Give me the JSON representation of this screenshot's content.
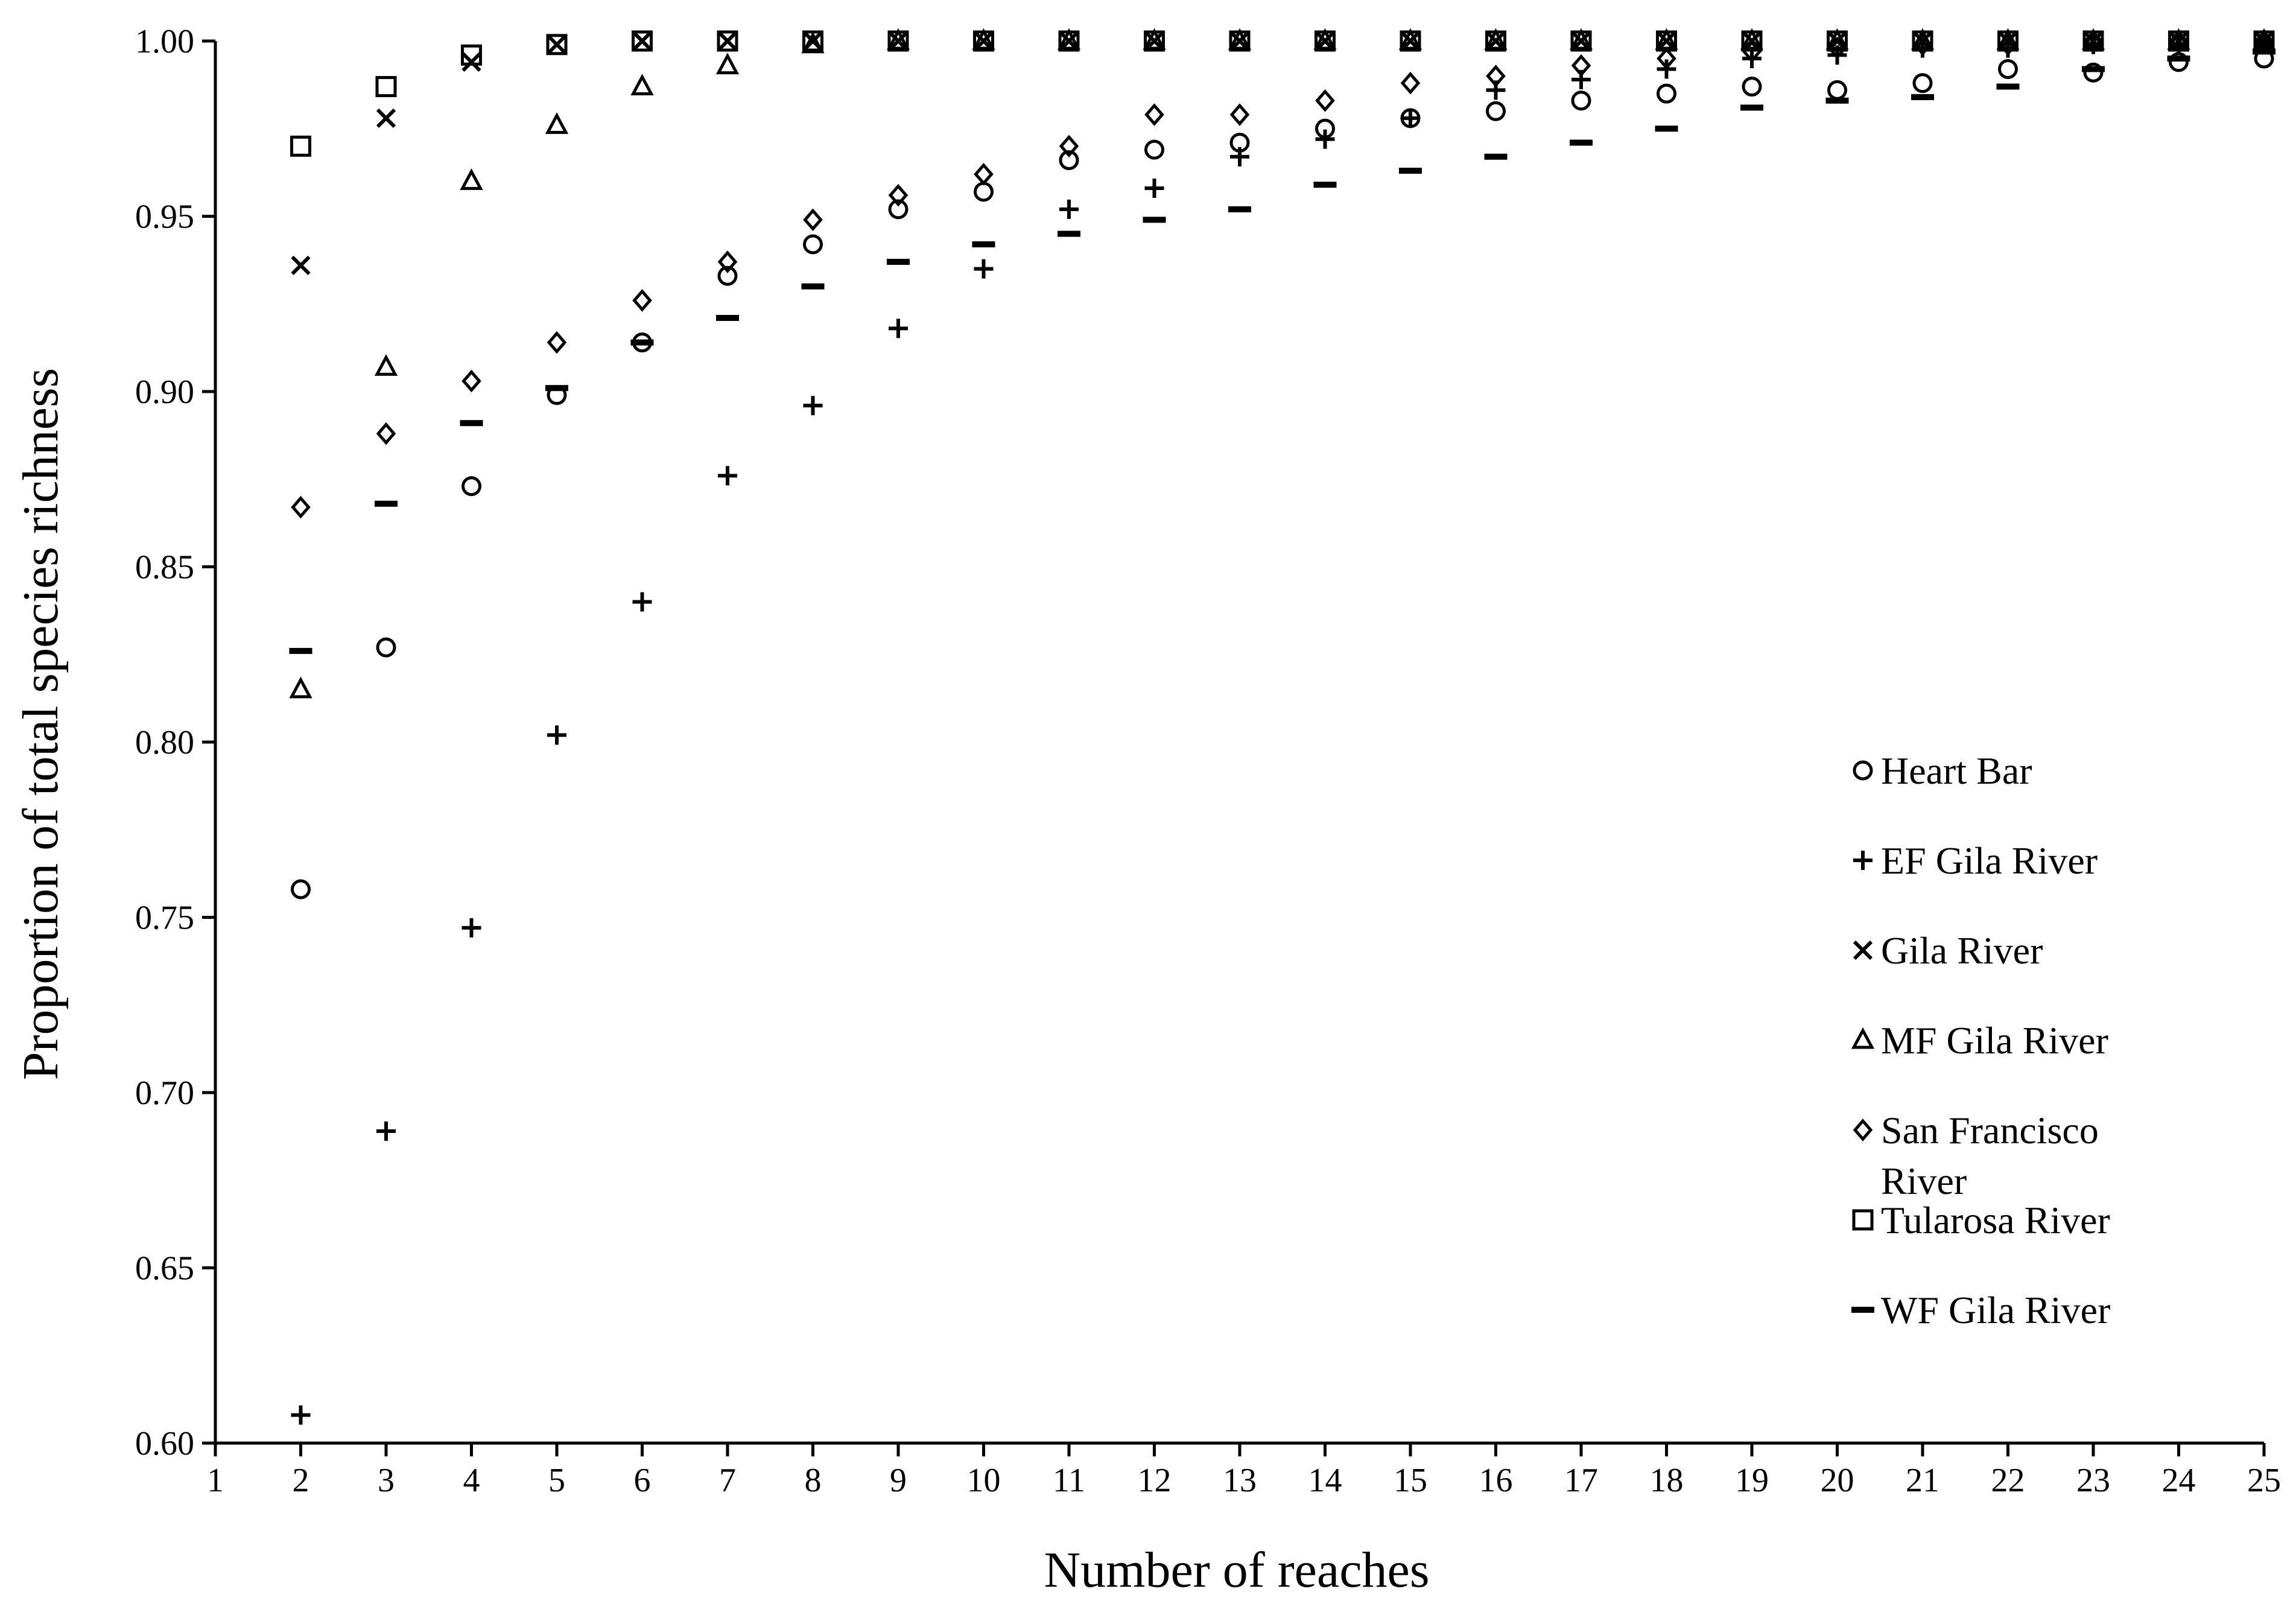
{
  "chart_data": {
    "type": "scatter",
    "xlabel": "Number of reaches",
    "ylabel": "Proportion of total species richness",
    "xlim": [
      1,
      25
    ],
    "ylim": [
      0.6,
      1.0
    ],
    "x_ticks": [
      "1",
      "2",
      "3",
      "4",
      "5",
      "6",
      "7",
      "8",
      "9",
      "10",
      "11",
      "12",
      "13",
      "14",
      "15",
      "16",
      "17",
      "18",
      "19",
      "20",
      "21",
      "22",
      "23",
      "24",
      "25"
    ],
    "y_ticks": [
      "0.60",
      "0.65",
      "0.70",
      "0.75",
      "0.80",
      "0.85",
      "0.90",
      "0.95",
      "1.00"
    ],
    "grid": false,
    "legend_position": "right",
    "series": [
      {
        "name": "Heart Bar",
        "marker": "circle",
        "x": [
          2,
          3,
          4,
          5,
          6,
          7,
          8,
          9,
          10,
          11,
          12,
          13,
          14,
          15,
          16,
          17,
          18,
          19,
          20,
          21,
          22,
          23,
          24,
          25
        ],
        "y": [
          0.758,
          0.827,
          0.873,
          0.899,
          0.914,
          0.933,
          0.942,
          0.952,
          0.957,
          0.966,
          0.969,
          0.971,
          0.975,
          0.978,
          0.98,
          0.983,
          0.985,
          0.987,
          0.986,
          0.988,
          0.992,
          0.991,
          0.994,
          0.995
        ]
      },
      {
        "name": "EF Gila River",
        "marker": "plus",
        "x": [
          2,
          3,
          4,
          5,
          6,
          7,
          8,
          9,
          10,
          11,
          12,
          13,
          14,
          15,
          16,
          17,
          18,
          19,
          20,
          21,
          22,
          23,
          24,
          25
        ],
        "y": [
          0.608,
          0.689,
          0.747,
          0.802,
          0.84,
          0.876,
          0.896,
          0.918,
          0.935,
          0.952,
          0.958,
          0.967,
          0.972,
          0.978,
          0.986,
          0.989,
          0.992,
          0.995,
          0.996,
          0.998,
          0.998,
          0.999,
          0.999,
          1.0
        ]
      },
      {
        "name": "Gila River",
        "marker": "x",
        "x": [
          2,
          3,
          4,
          5,
          6,
          7,
          8,
          9,
          10,
          11,
          12,
          13,
          14,
          15,
          16,
          17,
          18,
          19,
          20,
          21,
          22,
          23,
          24,
          25
        ],
        "y": [
          0.936,
          0.978,
          0.994,
          0.999,
          1.0,
          1.0,
          1.0,
          1.0,
          1.0,
          1.0,
          1.0,
          1.0,
          1.0,
          1.0,
          1.0,
          1.0,
          1.0,
          1.0,
          1.0,
          1.0,
          1.0,
          1.0,
          1.0,
          1.0
        ]
      },
      {
        "name": "MF Gila River",
        "marker": "triangle",
        "x": [
          2,
          3,
          4,
          5,
          6,
          7,
          8,
          9,
          10,
          11,
          12,
          13,
          14,
          15,
          16,
          17,
          18,
          19,
          20,
          21,
          22,
          23,
          24,
          25
        ],
        "y": [
          0.815,
          0.907,
          0.96,
          0.976,
          0.987,
          0.993,
          0.999,
          1.0,
          1.0,
          1.0,
          1.0,
          1.0,
          1.0,
          1.0,
          1.0,
          1.0,
          1.0,
          1.0,
          1.0,
          1.0,
          1.0,
          1.0,
          1.0,
          1.0
        ]
      },
      {
        "name": "San Francisco River",
        "marker": "diamond",
        "x": [
          2,
          3,
          4,
          5,
          6,
          7,
          8,
          9,
          10,
          11,
          12,
          13,
          14,
          15,
          16,
          17,
          18,
          19,
          20,
          21,
          22,
          23,
          24,
          25
        ],
        "y": [
          0.867,
          0.888,
          0.903,
          0.914,
          0.926,
          0.937,
          0.949,
          0.956,
          0.962,
          0.97,
          0.979,
          0.979,
          0.983,
          0.988,
          0.99,
          0.993,
          0.995,
          0.997,
          0.998,
          0.999,
          0.999,
          1.0,
          1.0,
          1.0
        ]
      },
      {
        "name": "Tularosa River",
        "marker": "square",
        "x": [
          2,
          3,
          4,
          5,
          6,
          7,
          8,
          9,
          10,
          11,
          12,
          13,
          14,
          15,
          16,
          17,
          18,
          19,
          20,
          21,
          22,
          23,
          24,
          25
        ],
        "y": [
          0.97,
          0.987,
          0.996,
          0.999,
          1.0,
          1.0,
          1.0,
          1.0,
          1.0,
          1.0,
          1.0,
          1.0,
          1.0,
          1.0,
          1.0,
          1.0,
          1.0,
          1.0,
          1.0,
          1.0,
          1.0,
          1.0,
          1.0,
          1.0
        ]
      },
      {
        "name": "WF Gila River",
        "marker": "dash",
        "x": [
          2,
          3,
          4,
          5,
          6,
          7,
          8,
          9,
          10,
          11,
          12,
          13,
          14,
          15,
          16,
          17,
          18,
          19,
          20,
          21,
          22,
          23,
          24,
          25
        ],
        "y": [
          0.826,
          0.868,
          0.891,
          0.901,
          0.914,
          0.921,
          0.93,
          0.937,
          0.942,
          0.945,
          0.949,
          0.952,
          0.959,
          0.963,
          0.967,
          0.971,
          0.975,
          0.981,
          0.983,
          0.984,
          0.987,
          0.992,
          0.995,
          0.997
        ]
      }
    ],
    "legend": [
      {
        "marker": "circle",
        "label": "Heart Bar"
      },
      {
        "marker": "plus",
        "label": "EF Gila River"
      },
      {
        "marker": "x",
        "label": "Gila River"
      },
      {
        "marker": "triangle",
        "label": "MF Gila River"
      },
      {
        "marker": "diamond",
        "label": "San Francisco",
        "label_line2": "River"
      },
      {
        "marker": "square",
        "label": "Tularosa River"
      },
      {
        "marker": "dash",
        "label": "WF Gila River"
      }
    ]
  }
}
